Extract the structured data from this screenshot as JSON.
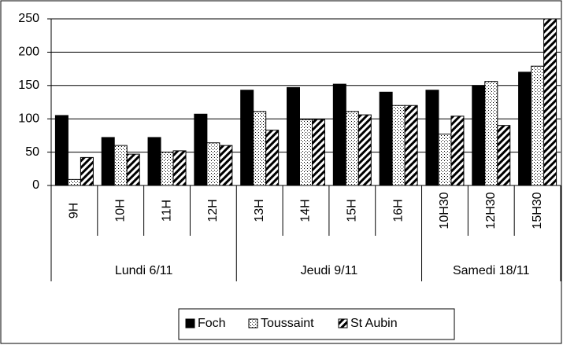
{
  "chart_data": {
    "type": "bar",
    "category_groups": [
      {
        "name": "Lundi 6/11",
        "categories": [
          "9H",
          "10H",
          "11H",
          "12H"
        ]
      },
      {
        "name": "Jeudi 9/11",
        "categories": [
          "13H",
          "14H",
          "15H",
          "16H"
        ]
      },
      {
        "name": "Samedi 18/11",
        "categories": [
          "10H30",
          "12H30",
          "15H30"
        ]
      }
    ],
    "series": [
      {
        "name": "Foch",
        "color": "#000000",
        "pattern": "solid",
        "values": [
          105,
          72,
          72,
          107,
          143,
          147,
          152,
          140,
          143,
          150,
          170
        ]
      },
      {
        "name": "Toussaint",
        "color": "#000000",
        "pattern": "dots",
        "values": [
          9,
          60,
          50,
          64,
          111,
          99,
          111,
          120,
          77,
          156,
          179
        ]
      },
      {
        "name": "St Aubin",
        "color": "#000000",
        "pattern": "stripes",
        "values": [
          42,
          47,
          52,
          60,
          83,
          99,
          106,
          120,
          104,
          90,
          250
        ]
      }
    ],
    "ylim": [
      0,
      250
    ],
    "yticks": [
      0,
      50,
      100,
      150,
      200,
      250
    ],
    "grid": true,
    "legend": "bottom"
  }
}
